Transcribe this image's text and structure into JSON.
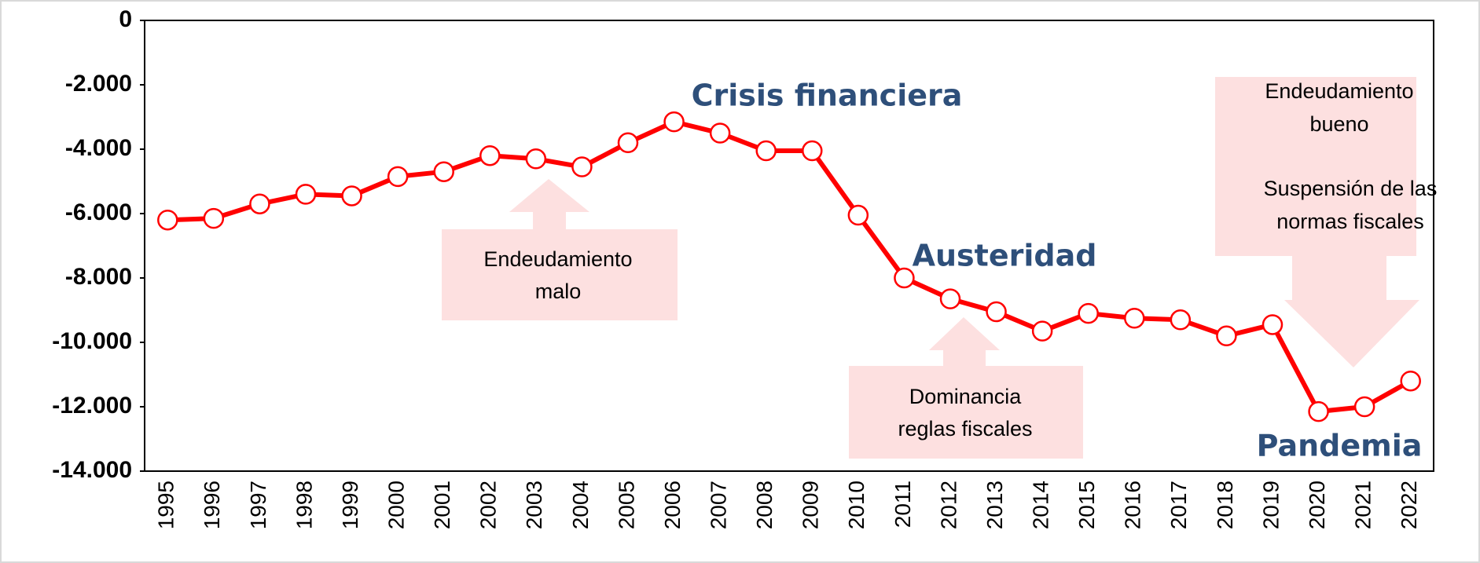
{
  "chart_data": {
    "type": "line",
    "categories": [
      "1995",
      "1996",
      "1997",
      "1998",
      "1999",
      "2000",
      "2001",
      "2002",
      "2003",
      "2004",
      "2005",
      "2006",
      "2007",
      "2008",
      "2009",
      "2010",
      "2011",
      "2012",
      "2013",
      "2014",
      "2015",
      "2016",
      "2017",
      "2018",
      "2019",
      "2020",
      "2021",
      "2022"
    ],
    "values": [
      -6200,
      -6150,
      -5700,
      -5400,
      -5450,
      -4850,
      -4700,
      -4200,
      -4300,
      -4550,
      -3800,
      -3150,
      -3500,
      -4050,
      -4050,
      -6050,
      -8000,
      -8650,
      -9050,
      -9650,
      -9100,
      -9250,
      -9300,
      -9800,
      -9450,
      -12150,
      -12000,
      -11200
    ],
    "color": "#ff0000",
    "ylim": [
      -14000,
      0
    ],
    "yticks": [
      {
        "value": -14000,
        "label": "-14.000"
      },
      {
        "value": -12000,
        "label": "-12.000"
      },
      {
        "value": -10000,
        "label": "-10.000"
      },
      {
        "value": -8000,
        "label": "-8.000"
      },
      {
        "value": -6000,
        "label": "-6.000"
      },
      {
        "value": -4000,
        "label": "-4.000"
      },
      {
        "value": -2000,
        "label": "-2.000"
      },
      0
    ],
    "annotations": [
      "Crisis financiera",
      "Austeridad",
      "Pandemia"
    ],
    "boxes": [
      [
        "Endeudamiento",
        "malo"
      ],
      [
        "Dominancia",
        "reglas fiscales"
      ],
      [
        "Endeudamiento",
        "bueno",
        "Suspensión de las",
        "normas fiscales"
      ]
    ]
  }
}
